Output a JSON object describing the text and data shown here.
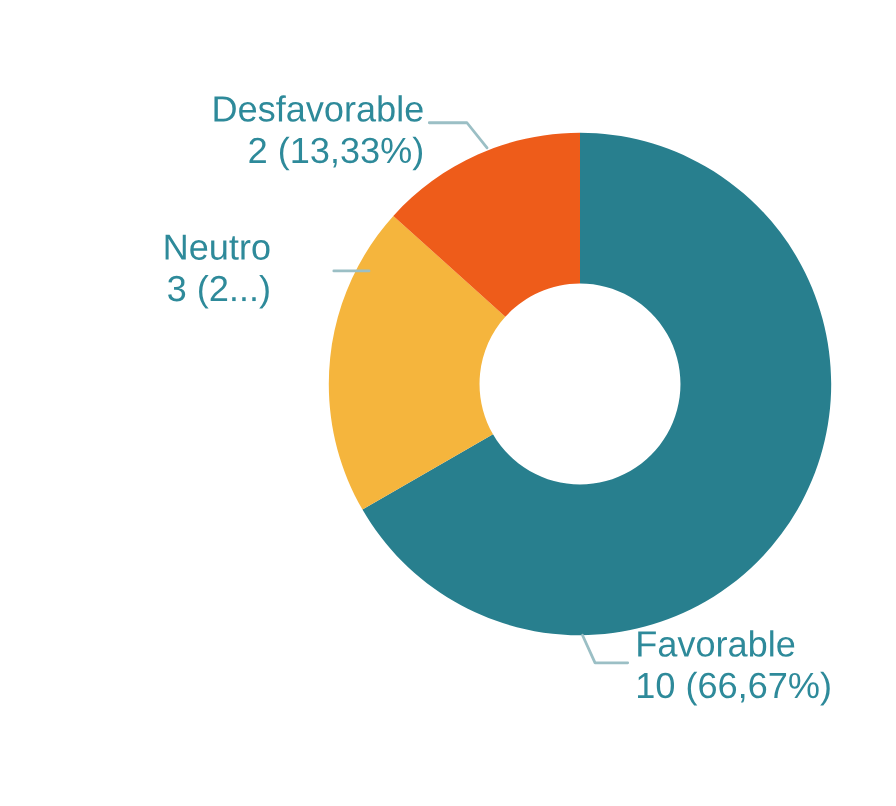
{
  "chart_data": {
    "type": "donut",
    "categories": [
      "Favorable",
      "Neutro",
      "Desfavorable"
    ],
    "values": [
      10,
      3,
      2
    ],
    "value_labels": [
      "10 (66,67%)",
      "3 (2...)",
      "2 (13,33%)"
    ],
    "colors": [
      "#287f8e",
      "#f5b53d",
      "#ee5c1a"
    ],
    "legend": false
  }
}
